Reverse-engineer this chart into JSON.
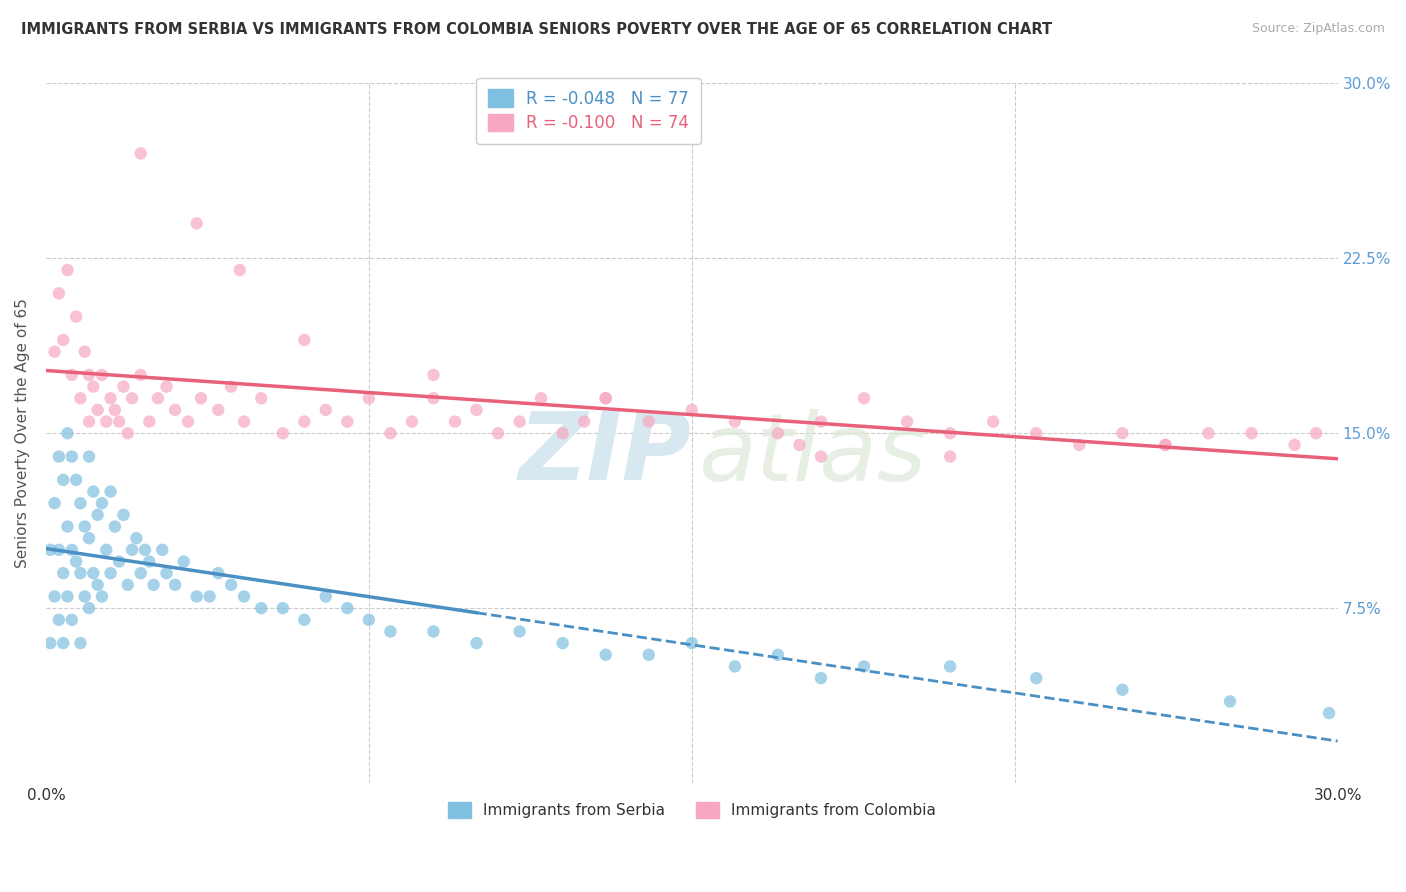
{
  "title": "IMMIGRANTS FROM SERBIA VS IMMIGRANTS FROM COLOMBIA SENIORS POVERTY OVER THE AGE OF 65 CORRELATION CHART",
  "source": "Source: ZipAtlas.com",
  "ylabel": "Seniors Poverty Over the Age of 65",
  "xlim": [
    0.0,
    0.3
  ],
  "ylim": [
    0.0,
    0.3
  ],
  "serbia_color": "#7fbfdf",
  "serbia_line_color": "#4a90c4",
  "colombia_color": "#f7a8c0",
  "colombia_line_color": "#e8607a",
  "serbia_R": -0.048,
  "serbia_N": 77,
  "colombia_R": -0.1,
  "colombia_N": 74,
  "serbia_scatter_x": [
    0.001,
    0.001,
    0.002,
    0.002,
    0.003,
    0.003,
    0.003,
    0.004,
    0.004,
    0.004,
    0.005,
    0.005,
    0.005,
    0.006,
    0.006,
    0.006,
    0.007,
    0.007,
    0.008,
    0.008,
    0.008,
    0.009,
    0.009,
    0.01,
    0.01,
    0.01,
    0.011,
    0.011,
    0.012,
    0.012,
    0.013,
    0.013,
    0.014,
    0.015,
    0.015,
    0.016,
    0.017,
    0.018,
    0.019,
    0.02,
    0.021,
    0.022,
    0.023,
    0.024,
    0.025,
    0.027,
    0.028,
    0.03,
    0.032,
    0.035,
    0.038,
    0.04,
    0.043,
    0.046,
    0.05,
    0.055,
    0.06,
    0.065,
    0.07,
    0.075,
    0.08,
    0.09,
    0.1,
    0.11,
    0.12,
    0.13,
    0.14,
    0.15,
    0.16,
    0.17,
    0.18,
    0.19,
    0.21,
    0.23,
    0.25,
    0.275,
    0.298
  ],
  "serbia_scatter_y": [
    0.1,
    0.06,
    0.12,
    0.08,
    0.14,
    0.1,
    0.07,
    0.13,
    0.09,
    0.06,
    0.15,
    0.11,
    0.08,
    0.14,
    0.1,
    0.07,
    0.13,
    0.095,
    0.12,
    0.09,
    0.06,
    0.11,
    0.08,
    0.14,
    0.105,
    0.075,
    0.125,
    0.09,
    0.115,
    0.085,
    0.12,
    0.08,
    0.1,
    0.125,
    0.09,
    0.11,
    0.095,
    0.115,
    0.085,
    0.1,
    0.105,
    0.09,
    0.1,
    0.095,
    0.085,
    0.1,
    0.09,
    0.085,
    0.095,
    0.08,
    0.08,
    0.09,
    0.085,
    0.08,
    0.075,
    0.075,
    0.07,
    0.08,
    0.075,
    0.07,
    0.065,
    0.065,
    0.06,
    0.065,
    0.06,
    0.055,
    0.055,
    0.06,
    0.05,
    0.055,
    0.045,
    0.05,
    0.05,
    0.045,
    0.04,
    0.035,
    0.03
  ],
  "colombia_scatter_x": [
    0.002,
    0.003,
    0.004,
    0.005,
    0.006,
    0.007,
    0.008,
    0.009,
    0.01,
    0.01,
    0.011,
    0.012,
    0.013,
    0.014,
    0.015,
    0.016,
    0.017,
    0.018,
    0.019,
    0.02,
    0.022,
    0.024,
    0.026,
    0.028,
    0.03,
    0.033,
    0.036,
    0.04,
    0.043,
    0.046,
    0.05,
    0.055,
    0.06,
    0.065,
    0.07,
    0.075,
    0.08,
    0.085,
    0.09,
    0.095,
    0.1,
    0.105,
    0.11,
    0.115,
    0.12,
    0.125,
    0.13,
    0.14,
    0.15,
    0.16,
    0.17,
    0.18,
    0.19,
    0.2,
    0.21,
    0.22,
    0.23,
    0.24,
    0.25,
    0.26,
    0.27,
    0.28,
    0.29,
    0.295,
    0.175,
    0.21,
    0.26,
    0.022,
    0.035,
    0.045,
    0.06,
    0.09,
    0.13,
    0.18
  ],
  "colombia_scatter_y": [
    0.185,
    0.21,
    0.19,
    0.22,
    0.175,
    0.2,
    0.165,
    0.185,
    0.155,
    0.175,
    0.17,
    0.16,
    0.175,
    0.155,
    0.165,
    0.16,
    0.155,
    0.17,
    0.15,
    0.165,
    0.175,
    0.155,
    0.165,
    0.17,
    0.16,
    0.155,
    0.165,
    0.16,
    0.17,
    0.155,
    0.165,
    0.15,
    0.155,
    0.16,
    0.155,
    0.165,
    0.15,
    0.155,
    0.165,
    0.155,
    0.16,
    0.15,
    0.155,
    0.165,
    0.15,
    0.155,
    0.165,
    0.155,
    0.16,
    0.155,
    0.15,
    0.155,
    0.165,
    0.155,
    0.15,
    0.155,
    0.15,
    0.145,
    0.15,
    0.145,
    0.15,
    0.15,
    0.145,
    0.15,
    0.145,
    0.14,
    0.145,
    0.27,
    0.24,
    0.22,
    0.19,
    0.175,
    0.165,
    0.14
  ],
  "watermark_zip": "ZIP",
  "watermark_atlas": "atlas",
  "background_color": "#ffffff"
}
